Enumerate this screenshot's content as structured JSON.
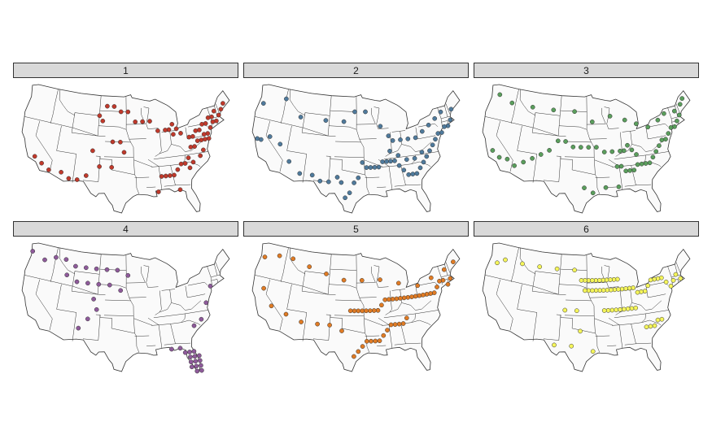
{
  "title": "",
  "panels": [
    {
      "label": "1",
      "color": "#c0392b"
    },
    {
      "label": "2",
      "color": "#4f7a9c"
    },
    {
      "label": "3",
      "color": "#5a9e5c"
    },
    {
      "label": "4",
      "color": "#8e5a9a"
    },
    {
      "label": "5",
      "color": "#e07b24"
    },
    {
      "label": "6",
      "color": "#f5f55a"
    }
  ],
  "map": {
    "land_color": "#fafafa",
    "border_color": "#333333",
    "projection": "albers-usa",
    "point_sites": [
      [
        [
          -71,
          43
        ],
        [
          -72,
          42
        ],
        [
          -73,
          42
        ],
        [
          -74,
          41
        ],
        [
          -75,
          40
        ],
        [
          -76,
          40
        ],
        [
          -77,
          39
        ],
        [
          -78,
          39
        ],
        [
          -79,
          38
        ],
        [
          -80,
          38
        ],
        [
          -81,
          36
        ],
        [
          -82,
          35
        ],
        [
          -83,
          35
        ],
        [
          -84,
          34
        ],
        [
          -85,
          33
        ],
        [
          -86,
          33
        ],
        [
          -87,
          33
        ],
        [
          -70,
          44
        ],
        [
          -69,
          45
        ],
        [
          -72,
          44
        ],
        [
          -73,
          43
        ],
        [
          -74,
          43
        ],
        [
          -75,
          42
        ],
        [
          -76,
          42
        ],
        [
          -77,
          41
        ],
        [
          -78,
          41
        ],
        [
          -79,
          40
        ],
        [
          -80,
          40
        ],
        [
          -75,
          39
        ],
        [
          -76,
          39
        ],
        [
          -80,
          35
        ],
        [
          -81,
          34
        ],
        [
          -78,
          36
        ],
        [
          -77,
          37
        ],
        [
          -102,
          47
        ],
        [
          -100,
          47
        ],
        [
          -98,
          46
        ],
        [
          -96,
          46
        ],
        [
          -94,
          44
        ],
        [
          -92,
          44
        ],
        [
          -90,
          44
        ],
        [
          -88,
          42
        ],
        [
          -98,
          40
        ],
        [
          -100,
          40
        ],
        [
          -103,
          44
        ],
        [
          -104,
          45
        ],
        [
          -105,
          38
        ],
        [
          -106,
          33
        ],
        [
          -108,
          32
        ],
        [
          -110,
          32
        ],
        [
          -112,
          33
        ],
        [
          -115,
          33
        ],
        [
          -117,
          34
        ],
        [
          -119,
          35
        ],
        [
          -100,
          35
        ],
        [
          -103,
          35
        ],
        [
          -97,
          38
        ],
        [
          -88,
          33
        ],
        [
          -89,
          30
        ],
        [
          -84,
          30
        ],
        [
          -84,
          41
        ],
        [
          -85,
          42
        ],
        [
          -86,
          42
        ],
        [
          -84,
          43
        ],
        [
          -83,
          42
        ],
        [
          -82,
          41
        ]
      ],
      [
        [
          -71,
          42
        ],
        [
          -72,
          41
        ],
        [
          -73,
          41
        ],
        [
          -74,
          40
        ],
        [
          -75,
          40
        ],
        [
          -76,
          39
        ],
        [
          -77,
          38
        ],
        [
          -78,
          37
        ],
        [
          -79,
          36
        ],
        [
          -80,
          35
        ],
        [
          -81,
          34
        ],
        [
          -82,
          33
        ],
        [
          -83,
          33
        ],
        [
          -84,
          33
        ],
        [
          -85,
          34
        ],
        [
          -86,
          35
        ],
        [
          -87,
          36
        ],
        [
          -88,
          36
        ],
        [
          -89,
          36
        ],
        [
          -90,
          36
        ],
        [
          -91,
          35
        ],
        [
          -92,
          35
        ],
        [
          -93,
          35
        ],
        [
          -94,
          35
        ],
        [
          -95,
          36
        ],
        [
          -96,
          33
        ],
        [
          -97,
          32
        ],
        [
          -98,
          30
        ],
        [
          -99,
          29
        ],
        [
          -100,
          32
        ],
        [
          -101,
          33
        ],
        [
          -103,
          32
        ],
        [
          -105,
          32
        ],
        [
          -107,
          33
        ],
        [
          -110,
          33
        ],
        [
          -113,
          35
        ],
        [
          -116,
          38
        ],
        [
          -119,
          39
        ],
        [
          -121,
          38
        ],
        [
          -122,
          38
        ],
        [
          -123,
          45
        ],
        [
          -117,
          47
        ],
        [
          -112,
          44
        ],
        [
          -105,
          44
        ],
        [
          -100,
          44
        ],
        [
          -97,
          46
        ],
        [
          -94,
          46
        ],
        [
          -90,
          43
        ],
        [
          -88,
          41
        ],
        [
          -87,
          40
        ],
        [
          -85,
          40
        ],
        [
          -83,
          40
        ],
        [
          -81,
          40
        ],
        [
          -79,
          41
        ],
        [
          -77,
          42
        ],
        [
          -75,
          43
        ],
        [
          -73,
          44
        ],
        [
          -70,
          44
        ],
        [
          -80,
          37
        ],
        [
          -82,
          36
        ],
        [
          -84,
          36
        ],
        [
          -86,
          37
        ],
        [
          -88,
          38
        ]
      ],
      [
        [
          -72,
          44
        ],
        [
          -71,
          43
        ],
        [
          -72,
          42
        ],
        [
          -73,
          41
        ],
        [
          -74,
          41
        ],
        [
          -75,
          40
        ],
        [
          -76,
          39
        ],
        [
          -77,
          39
        ],
        [
          -78,
          38
        ],
        [
          -79,
          37
        ],
        [
          -80,
          36
        ],
        [
          -81,
          35
        ],
        [
          -82,
          35
        ],
        [
          -83,
          35
        ],
        [
          -84,
          35
        ],
        [
          -85,
          34
        ],
        [
          -86,
          34
        ],
        [
          -87,
          34
        ],
        [
          -88,
          35
        ],
        [
          -89,
          35
        ],
        [
          -84,
          37
        ],
        [
          -85,
          38
        ],
        [
          -86,
          39
        ],
        [
          -87,
          38
        ],
        [
          -88,
          38
        ],
        [
          -90,
          38
        ],
        [
          -92,
          38
        ],
        [
          -94,
          39
        ],
        [
          -96,
          39
        ],
        [
          -98,
          39
        ],
        [
          -100,
          39
        ],
        [
          -102,
          40
        ],
        [
          -104,
          40
        ],
        [
          -106,
          38
        ],
        [
          -108,
          37
        ],
        [
          -110,
          36
        ],
        [
          -112,
          35
        ],
        [
          -114,
          34
        ],
        [
          -116,
          35
        ],
        [
          -118,
          35
        ],
        [
          -120,
          36
        ],
        [
          -122,
          47
        ],
        [
          -118,
          46
        ],
        [
          -112,
          46
        ],
        [
          -106,
          46
        ],
        [
          -100,
          46
        ],
        [
          -95,
          44
        ],
        [
          -90,
          45
        ],
        [
          -86,
          44
        ],
        [
          -83,
          43
        ],
        [
          -80,
          42
        ],
        [
          -77,
          43
        ],
        [
          -75,
          44
        ],
        [
          -70,
          45
        ],
        [
          -69,
          46
        ],
        [
          -97,
          31
        ],
        [
          -95,
          30
        ],
        [
          -92,
          31
        ],
        [
          -89,
          31
        ]
      ],
      [
        [
          -82,
          28
        ],
        [
          -81,
          27
        ],
        [
          -80,
          26
        ],
        [
          -82,
          27
        ],
        [
          -81,
          28
        ],
        [
          -80,
          27
        ],
        [
          -82,
          29
        ],
        [
          -81,
          29
        ],
        [
          -80,
          28
        ],
        [
          -81,
          26
        ],
        [
          -82,
          26
        ],
        [
          -83,
          29
        ],
        [
          -80,
          25
        ],
        [
          -81,
          25
        ],
        [
          -84,
          30
        ],
        [
          -86,
          30
        ],
        [
          -124,
          47
        ],
        [
          -120,
          46
        ],
        [
          -117,
          47
        ],
        [
          -114,
          47
        ],
        [
          -111,
          46
        ],
        [
          -108,
          46
        ],
        [
          -105,
          46
        ],
        [
          -102,
          46
        ],
        [
          -99,
          46
        ],
        [
          -96,
          45
        ],
        [
          -113,
          44
        ],
        [
          -110,
          43
        ],
        [
          -107,
          43
        ],
        [
          -104,
          43
        ],
        [
          -101,
          43
        ],
        [
          -98,
          42
        ],
        [
          -105,
          40
        ],
        [
          -104,
          38
        ],
        [
          -106,
          36
        ],
        [
          -108,
          34
        ],
        [
          -80,
          34
        ],
        [
          -78,
          35
        ],
        [
          -76,
          38
        ],
        [
          -74,
          41
        ]
      ],
      [
        [
          -71,
          42
        ],
        [
          -72,
          41
        ],
        [
          -73,
          42
        ],
        [
          -74,
          42
        ],
        [
          -75,
          41
        ],
        [
          -76,
          40
        ],
        [
          -77,
          40
        ],
        [
          -78,
          40
        ],
        [
          -79,
          40
        ],
        [
          -80,
          40
        ],
        [
          -81,
          40
        ],
        [
          -82,
          40
        ],
        [
          -83,
          40
        ],
        [
          -84,
          40
        ],
        [
          -85,
          40
        ],
        [
          -86,
          40
        ],
        [
          -87,
          40
        ],
        [
          -88,
          40
        ],
        [
          -89,
          40
        ],
        [
          -90,
          39
        ],
        [
          -91,
          38
        ],
        [
          -92,
          38
        ],
        [
          -93,
          38
        ],
        [
          -94,
          38
        ],
        [
          -95,
          38
        ],
        [
          -96,
          38
        ],
        [
          -97,
          38
        ],
        [
          -98,
          38
        ],
        [
          -84,
          36
        ],
        [
          -85,
          35
        ],
        [
          -86,
          35
        ],
        [
          -87,
          35
        ],
        [
          -88,
          35
        ],
        [
          -89,
          34
        ],
        [
          -90,
          33
        ],
        [
          -91,
          32
        ],
        [
          -92,
          32
        ],
        [
          -93,
          32
        ],
        [
          -94,
          32
        ],
        [
          -95,
          31
        ],
        [
          -96,
          30
        ],
        [
          -97,
          29
        ],
        [
          -100,
          34
        ],
        [
          -103,
          35
        ],
        [
          -106,
          35
        ],
        [
          -110,
          35
        ],
        [
          -114,
          36
        ],
        [
          -118,
          37
        ],
        [
          -121,
          40
        ],
        [
          -123,
          46
        ],
        [
          -119,
          47
        ],
        [
          -115,
          47
        ],
        [
          -110,
          46
        ],
        [
          -105,
          45
        ],
        [
          -100,
          44
        ],
        [
          -95,
          44
        ],
        [
          -90,
          44
        ],
        [
          -85,
          43
        ],
        [
          -80,
          42
        ],
        [
          -76,
          43
        ],
        [
          -72,
          44
        ],
        [
          -69,
          45
        ]
      ],
      [
        [
          -71,
          42
        ],
        [
          -72,
          43
        ],
        [
          -73,
          42
        ],
        [
          -74,
          41
        ],
        [
          -75,
          42
        ],
        [
          -76,
          43
        ],
        [
          -77,
          43
        ],
        [
          -78,
          43
        ],
        [
          -79,
          43
        ],
        [
          -80,
          42
        ],
        [
          -81,
          41
        ],
        [
          -82,
          41
        ],
        [
          -83,
          41
        ],
        [
          -84,
          42
        ],
        [
          -85,
          42
        ],
        [
          -86,
          42
        ],
        [
          -87,
          42
        ],
        [
          -88,
          42
        ],
        [
          -89,
          42
        ],
        [
          -90,
          42
        ],
        [
          -91,
          42
        ],
        [
          -92,
          42
        ],
        [
          -93,
          42
        ],
        [
          -94,
          42
        ],
        [
          -95,
          42
        ],
        [
          -96,
          42
        ],
        [
          -97,
          42
        ],
        [
          -88,
          44
        ],
        [
          -89,
          44
        ],
        [
          -90,
          44
        ],
        [
          -91,
          44
        ],
        [
          -92,
          44
        ],
        [
          -93,
          44
        ],
        [
          -94,
          44
        ],
        [
          -95,
          44
        ],
        [
          -96,
          44
        ],
        [
          -97,
          44
        ],
        [
          -98,
          44
        ],
        [
          -84,
          38
        ],
        [
          -85,
          38
        ],
        [
          -86,
          38
        ],
        [
          -87,
          38
        ],
        [
          -88,
          38
        ],
        [
          -89,
          38
        ],
        [
          -90,
          38
        ],
        [
          -91,
          38
        ],
        [
          -92,
          38
        ],
        [
          -78,
          35
        ],
        [
          -79,
          35
        ],
        [
          -80,
          34
        ],
        [
          -81,
          34
        ],
        [
          -82,
          34
        ],
        [
          -100,
          46
        ],
        [
          -105,
          46
        ],
        [
          -110,
          46
        ],
        [
          -115,
          46
        ],
        [
          -120,
          46
        ],
        [
          -122,
          45
        ],
        [
          -99,
          38
        ],
        [
          -102,
          38
        ],
        [
          -98,
          34
        ],
        [
          -95,
          30
        ],
        [
          -100,
          31
        ],
        [
          -104,
          31
        ]
      ]
    ]
  }
}
